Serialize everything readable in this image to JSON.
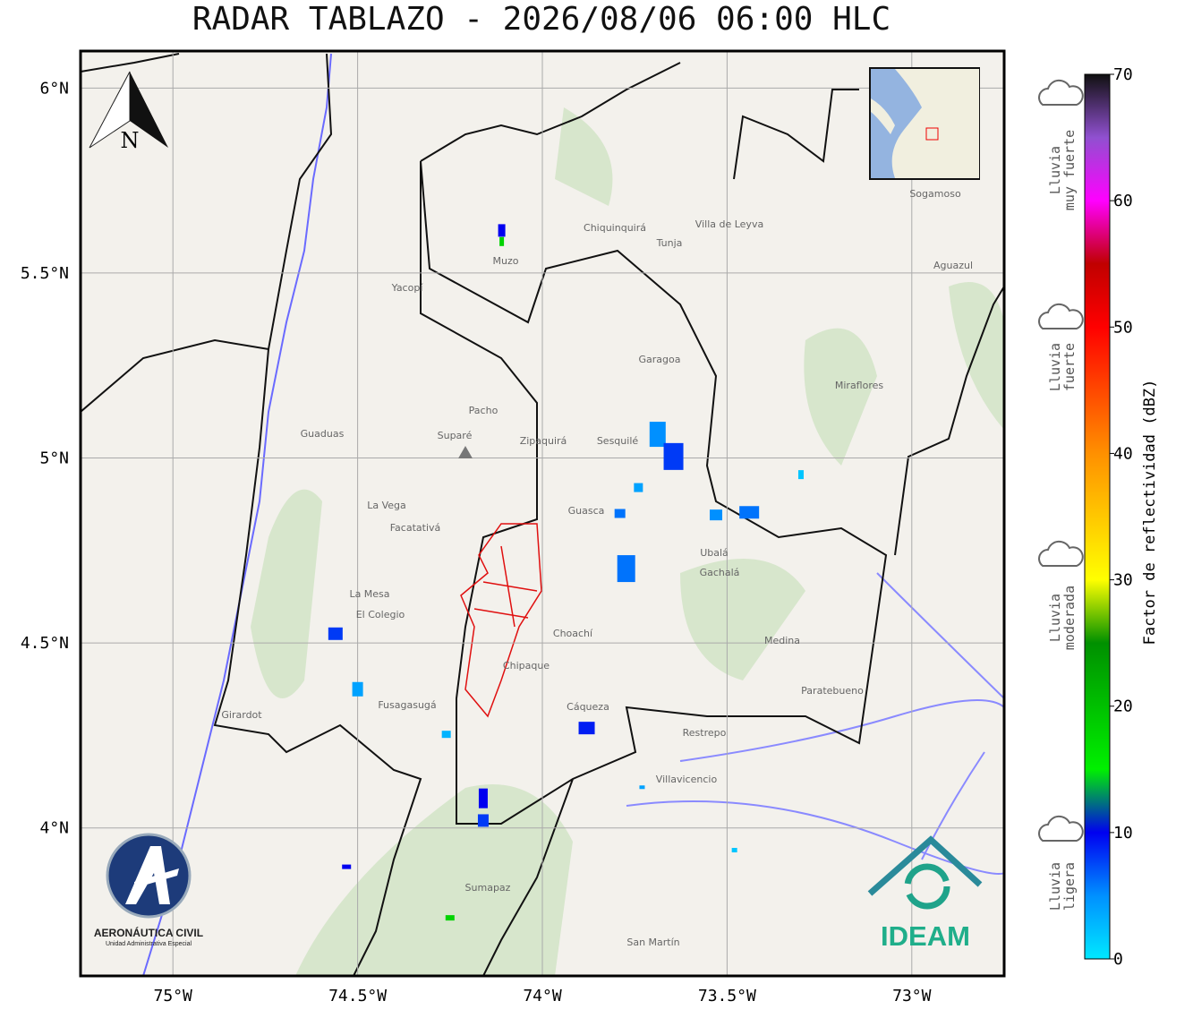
{
  "title": "RADAR TABLAZO - 2026/08/06 06:00 HLC",
  "map": {
    "lonlim": [
      -75.25,
      -72.75
    ],
    "latlim": [
      3.6,
      6.1
    ],
    "lonticks": [
      {
        "value": -75,
        "label": "75°W"
      },
      {
        "value": -74.5,
        "label": "74.5°W"
      },
      {
        "value": -74,
        "label": "74°W"
      },
      {
        "value": -73.5,
        "label": "73.5°W"
      },
      {
        "value": -73,
        "label": "73°W"
      }
    ],
    "latticks": [
      {
        "value": 6,
        "label": "6°N"
      },
      {
        "value": 5.5,
        "label": "5.5°N"
      },
      {
        "value": 5,
        "label": "5°N"
      },
      {
        "value": 4.5,
        "label": "4.5°N"
      },
      {
        "value": 4,
        "label": "4°N"
      }
    ],
    "grid": true,
    "north_label": "N",
    "places": [
      "Villa de Leyva",
      "Tunja",
      "Sogamoso",
      "Chiquinquirá",
      "Zipaquirá",
      "Suparé",
      "Guaduas",
      "La Mesa",
      "Facatativá",
      "Fusagasugá",
      "Choachí",
      "Chipaque",
      "Cáqueza",
      "Ubalá",
      "Gachalá",
      "Medina",
      "Villavicencio",
      "Garagoa",
      "Pacho",
      "Sesquilé",
      "Guasca",
      "El Colegio",
      "Girardot",
      "Sumapaz",
      "Restrepo",
      "San Martín",
      "La Vega",
      "Yacopí",
      "Muzo",
      "Miraflores",
      "Aguazul",
      "Paratebueno"
    ],
    "radar_echoes": [
      {
        "lon": -74.11,
        "lat": 5.615,
        "dbz": 10
      },
      {
        "lon": -74.11,
        "lat": 5.585,
        "dbz": 18
      },
      {
        "lon": -73.688,
        "lat": 5.064,
        "dbz": 5
      },
      {
        "lon": -73.645,
        "lat": 5.004,
        "dbz": 8
      },
      {
        "lon": -73.773,
        "lat": 4.701,
        "dbz": 6
      },
      {
        "lon": -73.53,
        "lat": 4.846,
        "dbz": 5
      },
      {
        "lon": -73.44,
        "lat": 4.853,
        "dbz": 6
      },
      {
        "lon": -73.79,
        "lat": 4.85,
        "dbz": 6
      },
      {
        "lon": -73.74,
        "lat": 4.92,
        "dbz": 4
      },
      {
        "lon": -74.56,
        "lat": 4.525,
        "dbz": 8
      },
      {
        "lon": -74.5,
        "lat": 4.375,
        "dbz": 4
      },
      {
        "lon": -73.88,
        "lat": 4.27,
        "dbz": 9
      },
      {
        "lon": -74.16,
        "lat": 4.08,
        "dbz": 10
      },
      {
        "lon": -74.16,
        "lat": 4.02,
        "dbz": 8
      },
      {
        "lon": -74.53,
        "lat": 3.895,
        "dbz": 10
      },
      {
        "lon": -74.25,
        "lat": 3.757,
        "dbz": 18
      },
      {
        "lon": -73.3,
        "lat": 4.955,
        "dbz": 2
      },
      {
        "lon": -74.26,
        "lat": 4.253,
        "dbz": 3
      },
      {
        "lon": -73.48,
        "lat": 3.94,
        "dbz": 2
      },
      {
        "lon": -73.73,
        "lat": 4.11,
        "dbz": 4
      }
    ]
  },
  "colorbar": {
    "label": "Factor de reflectividad (dBZ)",
    "lim": [
      0,
      70
    ],
    "ticks": [
      0,
      10,
      20,
      30,
      40,
      50,
      60,
      70
    ],
    "colormap": [
      {
        "value": 0,
        "color": "#00e8ff"
      },
      {
        "value": 5,
        "color": "#0090ff"
      },
      {
        "value": 10,
        "color": "#0000f0"
      },
      {
        "value": 15,
        "color": "#00f000"
      },
      {
        "value": 25,
        "color": "#009000"
      },
      {
        "value": 30,
        "color": "#ffff00"
      },
      {
        "value": 40,
        "color": "#ff9000"
      },
      {
        "value": 50,
        "color": "#ff0000"
      },
      {
        "value": 55,
        "color": "#c00000"
      },
      {
        "value": 60,
        "color": "#ff00ff"
      },
      {
        "value": 65,
        "color": "#9050d0"
      },
      {
        "value": 70,
        "color": "#101010"
      }
    ]
  },
  "rain_categories": [
    [
      "Lluvia",
      "muy fuerte"
    ],
    [
      "Lluvia",
      "fuerte"
    ],
    [
      "Lluvia",
      "moderada"
    ],
    [
      "Lluvia",
      "ligera"
    ]
  ],
  "logos": {
    "aerocivil": "AERONÁUTICA CIVIL",
    "aerocivil_sub": "Unidad Administrativa Especial",
    "ideam": "IDEAM"
  }
}
